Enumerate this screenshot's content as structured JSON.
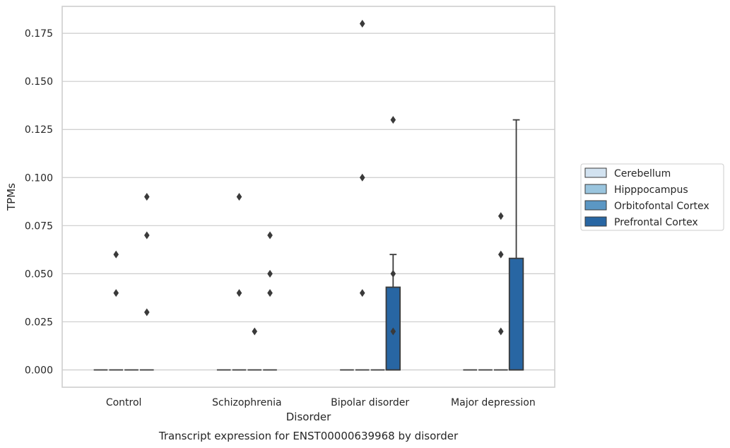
{
  "chart_data": {
    "type": "box",
    "title": "",
    "caption": "Transcript expression for ENST00000639968 by disorder",
    "xlabel": "Disorder",
    "ylabel": "TPMs",
    "ylim": [
      -0.009,
      0.189
    ],
    "yticks": [
      0.0,
      0.025,
      0.05,
      0.075,
      0.1,
      0.125,
      0.15,
      0.175
    ],
    "ytick_labels": [
      "0.000",
      "0.025",
      "0.050",
      "0.075",
      "0.100",
      "0.125",
      "0.150",
      "0.175"
    ],
    "grid": "horizontal",
    "legend_position": "right",
    "categories": [
      "Control",
      "Schizophrenia",
      "Bipolar disorder",
      "Major depression"
    ],
    "series": [
      {
        "name": "Cerebellum",
        "color": "#d2e2f0",
        "boxes": [
          {
            "q1": 0,
            "median": 0,
            "q3": 0,
            "whislo": 0,
            "whishi": 0,
            "fliers": []
          },
          {
            "q1": 0,
            "median": 0,
            "q3": 0,
            "whislo": 0,
            "whishi": 0,
            "fliers": []
          },
          {
            "q1": 0,
            "median": 0,
            "q3": 0,
            "whislo": 0,
            "whishi": 0,
            "fliers": []
          },
          {
            "q1": 0,
            "median": 0,
            "q3": 0,
            "whislo": 0,
            "whishi": 0,
            "fliers": []
          }
        ]
      },
      {
        "name": "Hipppocampus",
        "color": "#9ac5de",
        "boxes": [
          {
            "q1": 0,
            "median": 0,
            "q3": 0,
            "whislo": 0,
            "whishi": 0,
            "fliers": [
              0.04,
              0.06
            ]
          },
          {
            "q1": 0,
            "median": 0,
            "q3": 0,
            "whislo": 0,
            "whishi": 0,
            "fliers": [
              0.04,
              0.09
            ]
          },
          {
            "q1": 0,
            "median": 0,
            "q3": 0,
            "whislo": 0,
            "whishi": 0,
            "fliers": [
              0.04,
              0.1,
              0.18
            ]
          },
          {
            "q1": 0,
            "median": 0,
            "q3": 0,
            "whislo": 0,
            "whishi": 0,
            "fliers": []
          }
        ]
      },
      {
        "name": "Orbitofontal Cortex",
        "color": "#5b97c4",
        "boxes": [
          {
            "q1": 0,
            "median": 0,
            "q3": 0,
            "whislo": 0,
            "whishi": 0,
            "fliers": []
          },
          {
            "q1": 0,
            "median": 0,
            "q3": 0,
            "whislo": 0,
            "whishi": 0,
            "fliers": [
              0.02
            ]
          },
          {
            "q1": 0,
            "median": 0,
            "q3": 0,
            "whislo": 0,
            "whishi": 0,
            "fliers": []
          },
          {
            "q1": 0,
            "median": 0,
            "q3": 0,
            "whislo": 0,
            "whishi": 0,
            "fliers": [
              0.02,
              0.06,
              0.08
            ]
          }
        ]
      },
      {
        "name": "Prefrontal Cortex",
        "color": "#2866a3",
        "boxes": [
          {
            "q1": 0,
            "median": 0,
            "q3": 0,
            "whislo": 0,
            "whishi": 0,
            "fliers": [
              0.03,
              0.07,
              0.09
            ]
          },
          {
            "q1": 0,
            "median": 0,
            "q3": 0,
            "whislo": 0,
            "whishi": 0,
            "fliers": [
              0.04,
              0.05,
              0.07
            ]
          },
          {
            "q1": 0,
            "median": 0,
            "q3": 0.043,
            "whislo": 0,
            "whishi": 0.06,
            "fliers": [
              0.02,
              0.05,
              0.13
            ]
          },
          {
            "q1": 0,
            "median": 0,
            "q3": 0.058,
            "whislo": 0,
            "whishi": 0.13,
            "fliers": []
          }
        ]
      }
    ]
  }
}
